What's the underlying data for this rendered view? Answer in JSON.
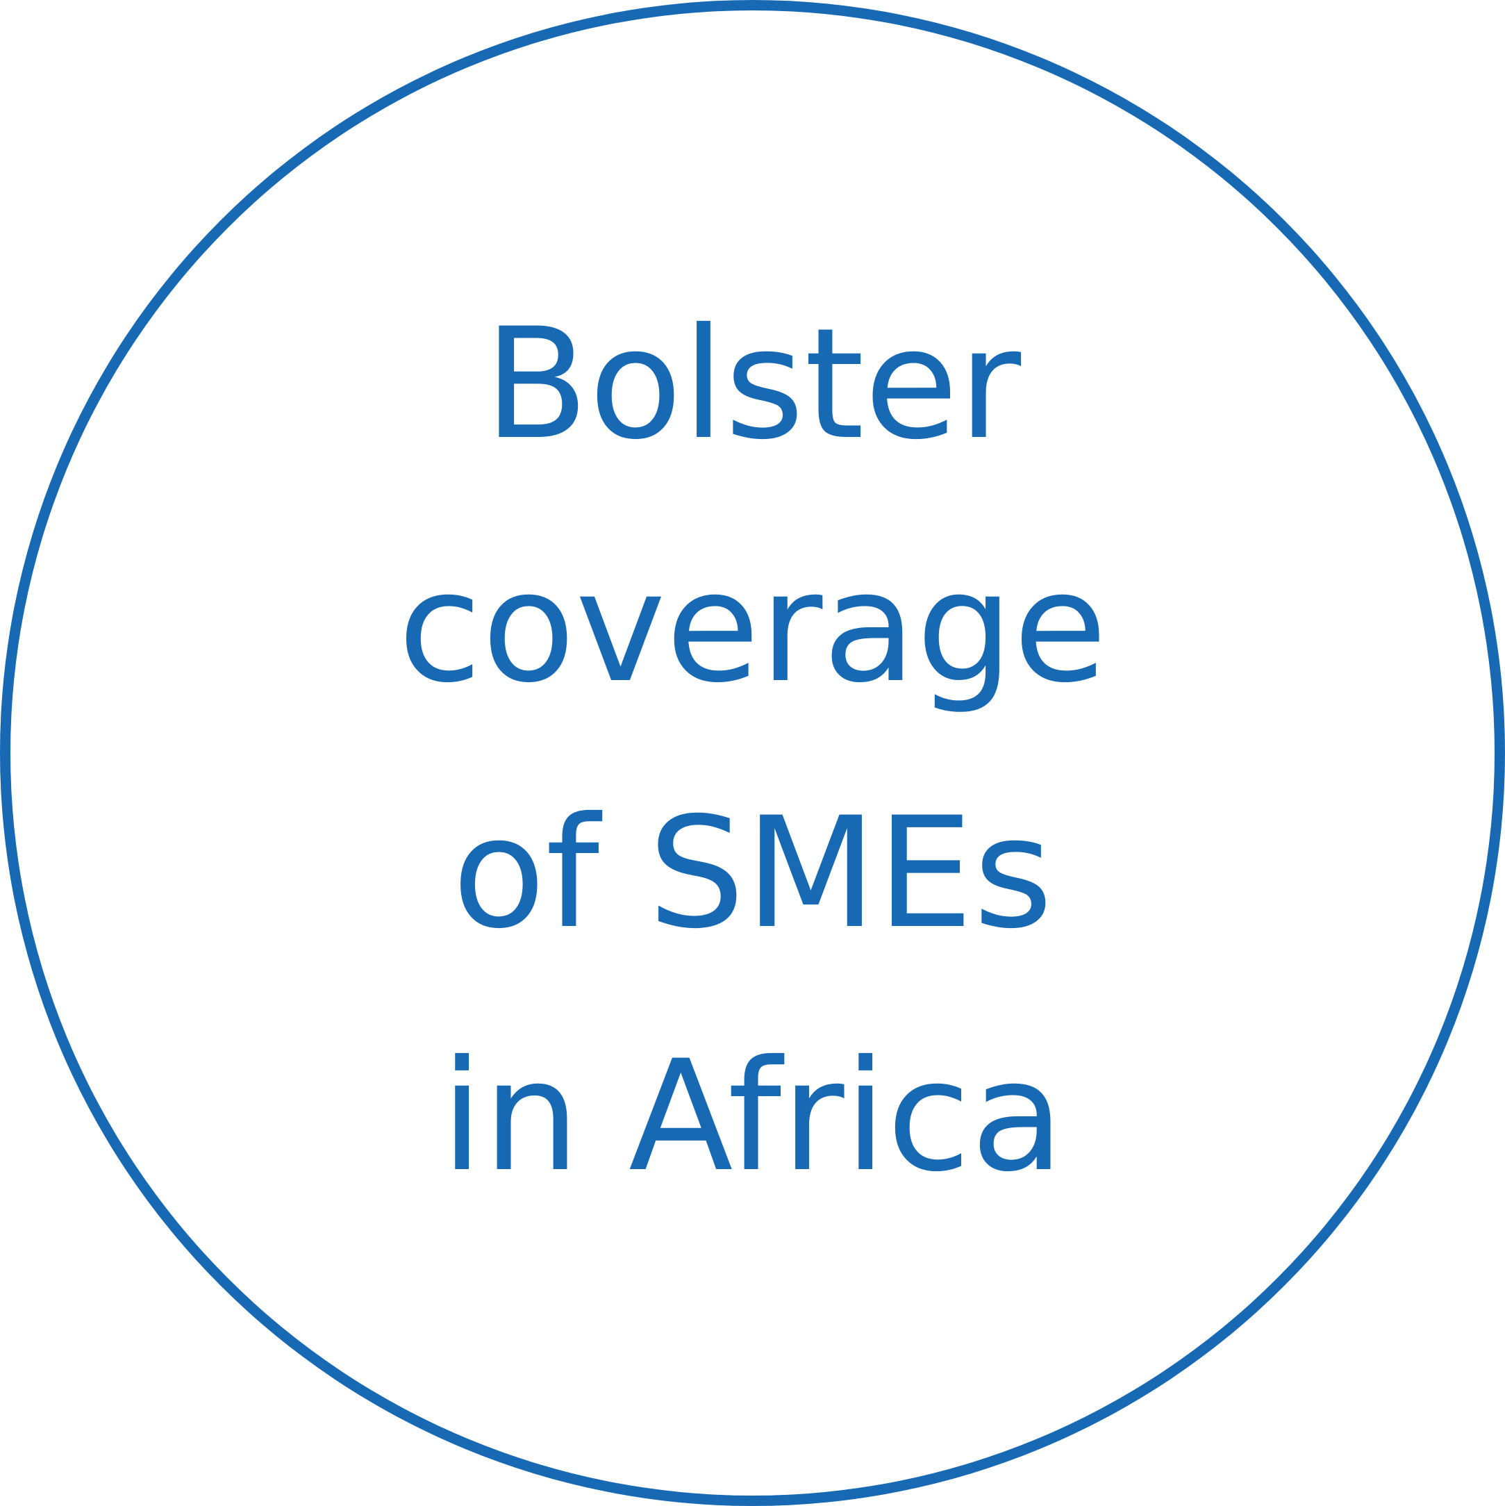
{
  "headline": {
    "lines": [
      "Bolster",
      "coverage",
      "of SMEs",
      "in Africa"
    ]
  },
  "colors": {
    "accent": "#1769b4",
    "background": "#ffffff"
  }
}
